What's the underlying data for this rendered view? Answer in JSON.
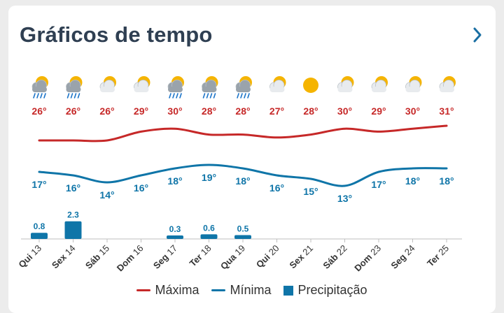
{
  "widget": {
    "title": "Gráficos de tempo"
  },
  "legend": {
    "max_label": "Máxima",
    "min_label": "Mínima",
    "precip_label": "Precipitação"
  },
  "colors": {
    "max": "#c62828",
    "min": "#0f75a8",
    "precip": "#0f75a8",
    "title": "#2f3f52",
    "axis": "#bfbfbf"
  },
  "days": [
    {
      "weekday": "Qui",
      "date": "13",
      "icon": "cloud-rain-sun-icon"
    },
    {
      "weekday": "Sex",
      "date": "14",
      "icon": "cloud-rain-sun-icon"
    },
    {
      "weekday": "Sáb",
      "date": "15",
      "icon": "sun-cloud-icon"
    },
    {
      "weekday": "Dom",
      "date": "16",
      "icon": "sun-cloud-icon"
    },
    {
      "weekday": "Seg",
      "date": "17",
      "icon": "cloud-rain-sun-icon"
    },
    {
      "weekday": "Ter",
      "date": "18",
      "icon": "cloud-rain-sun-icon"
    },
    {
      "weekday": "Qua",
      "date": "19",
      "icon": "cloud-rain-sun-icon"
    },
    {
      "weekday": "Qui",
      "date": "20",
      "icon": "sun-cloud-icon"
    },
    {
      "weekday": "Sex",
      "date": "21",
      "icon": "sun-icon"
    },
    {
      "weekday": "Sáb",
      "date": "22",
      "icon": "sun-cloud-icon"
    },
    {
      "weekday": "Dom",
      "date": "23",
      "icon": "sun-cloud-icon"
    },
    {
      "weekday": "Seg",
      "date": "24",
      "icon": "sun-cloud-icon"
    },
    {
      "weekday": "Ter",
      "date": "25",
      "icon": "sun-cloud-icon"
    }
  ],
  "chart_data": {
    "type": "line",
    "categories": [
      "Qui 13",
      "Sex 14",
      "Sáb 15",
      "Dom 16",
      "Seg 17",
      "Ter 18",
      "Qua 19",
      "Qui 20",
      "Sex 21",
      "Sáb 22",
      "Dom 23",
      "Seg 24",
      "Ter 25"
    ],
    "series": [
      {
        "name": "Máxima",
        "type": "line",
        "unit": "°",
        "values": [
          26,
          26,
          26,
          29,
          30,
          28,
          28,
          27,
          28,
          30,
          29,
          30,
          31
        ]
      },
      {
        "name": "Mínima",
        "type": "line",
        "unit": "°",
        "values": [
          17,
          16,
          14,
          16,
          18,
          19,
          18,
          16,
          15,
          13,
          17,
          18,
          18
        ]
      },
      {
        "name": "Precipitação",
        "type": "bar",
        "values": [
          0.8,
          2.3,
          0,
          0,
          0.3,
          0.6,
          0.5,
          0,
          0,
          0,
          0,
          0,
          0
        ]
      }
    ]
  }
}
